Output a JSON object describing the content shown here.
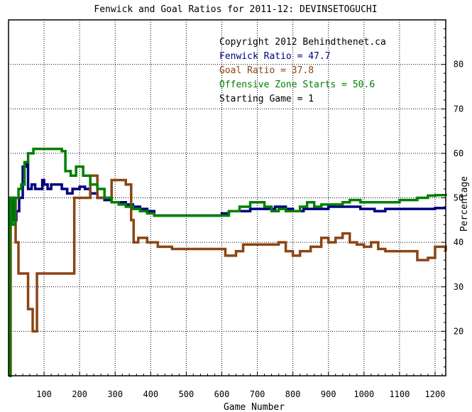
{
  "chart_data": {
    "type": "line",
    "title": "Fenwick and Goal Ratios for 2011-12: DEVINSETOGUCHI",
    "xlabel": "Game Number",
    "ylabel": "Percentage",
    "xlim": [
      0,
      1230
    ],
    "ylim": [
      10,
      90
    ],
    "x_ticks": [
      100,
      200,
      300,
      400,
      500,
      600,
      700,
      800,
      900,
      1000,
      1100,
      1200
    ],
    "y_ticks": [
      20,
      30,
      40,
      50,
      60,
      70,
      80
    ],
    "grid": true,
    "legend_position": "top-right",
    "annotations": [
      {
        "text": "Copyright 2012 Behindthenet.ca",
        "color": "#000000"
      },
      {
        "text": "Fenwick Ratio = 47.7",
        "color": "#00007f"
      },
      {
        "text": "Goal Ratio = 37.8",
        "color": "#8b4513"
      },
      {
        "text": "Offensive Zone Starts = 50.6",
        "color": "#007f00"
      },
      {
        "text": "Starting Game = 1",
        "color": "#000000"
      }
    ],
    "series": [
      {
        "key": "fenwick",
        "color": "#00007f",
        "points": [
          [
            1,
            10
          ],
          [
            5,
            50
          ],
          [
            12,
            45
          ],
          [
            22,
            47
          ],
          [
            30,
            50
          ],
          [
            40,
            57
          ],
          [
            48,
            58
          ],
          [
            55,
            52
          ],
          [
            65,
            53
          ],
          [
            75,
            52
          ],
          [
            85,
            52
          ],
          [
            95,
            54
          ],
          [
            100,
            53
          ],
          [
            110,
            52
          ],
          [
            120,
            53
          ],
          [
            135,
            53
          ],
          [
            150,
            52
          ],
          [
            165,
            51
          ],
          [
            180,
            52
          ],
          [
            200,
            52.5
          ],
          [
            215,
            52
          ],
          [
            230,
            51
          ],
          [
            250,
            50
          ],
          [
            270,
            49.5
          ],
          [
            290,
            49
          ],
          [
            310,
            49
          ],
          [
            330,
            48.5
          ],
          [
            350,
            48
          ],
          [
            370,
            47.5
          ],
          [
            390,
            47
          ],
          [
            410,
            46
          ],
          [
            500,
            46
          ],
          [
            580,
            46
          ],
          [
            600,
            46.5
          ],
          [
            620,
            47
          ],
          [
            650,
            47
          ],
          [
            680,
            47.5
          ],
          [
            720,
            47.5
          ],
          [
            750,
            48
          ],
          [
            780,
            47.5
          ],
          [
            800,
            47
          ],
          [
            830,
            47.5
          ],
          [
            860,
            47.5
          ],
          [
            900,
            48
          ],
          [
            950,
            48
          ],
          [
            990,
            47.5
          ],
          [
            1030,
            47
          ],
          [
            1060,
            47.5
          ],
          [
            1100,
            47.5
          ],
          [
            1150,
            47.5
          ],
          [
            1200,
            47.7
          ],
          [
            1230,
            47.7
          ]
        ]
      },
      {
        "key": "goal",
        "color": "#8b4513",
        "points": [
          [
            1,
            10
          ],
          [
            6,
            50
          ],
          [
            14,
            50
          ],
          [
            20,
            40
          ],
          [
            28,
            33
          ],
          [
            40,
            33
          ],
          [
            50,
            33
          ],
          [
            55,
            25
          ],
          [
            63,
            25
          ],
          [
            68,
            20
          ],
          [
            75,
            20
          ],
          [
            80,
            33
          ],
          [
            120,
            33
          ],
          [
            150,
            33
          ],
          [
            180,
            33
          ],
          [
            185,
            50
          ],
          [
            210,
            50
          ],
          [
            230,
            55
          ],
          [
            250,
            50
          ],
          [
            270,
            50
          ],
          [
            290,
            54
          ],
          [
            310,
            54
          ],
          [
            330,
            53
          ],
          [
            345,
            45
          ],
          [
            352,
            40
          ],
          [
            365,
            41
          ],
          [
            390,
            40
          ],
          [
            420,
            39
          ],
          [
            460,
            38.5
          ],
          [
            560,
            38.5
          ],
          [
            600,
            38.5
          ],
          [
            610,
            37
          ],
          [
            640,
            38
          ],
          [
            660,
            39.5
          ],
          [
            700,
            39.5
          ],
          [
            740,
            39.5
          ],
          [
            760,
            40
          ],
          [
            780,
            38
          ],
          [
            800,
            37
          ],
          [
            820,
            38
          ],
          [
            850,
            39
          ],
          [
            880,
            41
          ],
          [
            900,
            40
          ],
          [
            920,
            41
          ],
          [
            940,
            42
          ],
          [
            960,
            40
          ],
          [
            980,
            39.5
          ],
          [
            1000,
            39
          ],
          [
            1020,
            40
          ],
          [
            1040,
            38.5
          ],
          [
            1060,
            38
          ],
          [
            1100,
            38
          ],
          [
            1130,
            38
          ],
          [
            1150,
            36
          ],
          [
            1180,
            36.5
          ],
          [
            1200,
            39
          ],
          [
            1230,
            38
          ]
        ]
      },
      {
        "key": "ozs",
        "color": "#007f00",
        "points": [
          [
            1,
            10
          ],
          [
            4,
            50
          ],
          [
            10,
            44
          ],
          [
            18,
            50
          ],
          [
            28,
            52
          ],
          [
            36,
            53
          ],
          [
            45,
            58
          ],
          [
            55,
            60
          ],
          [
            70,
            61
          ],
          [
            100,
            61
          ],
          [
            120,
            61
          ],
          [
            140,
            61
          ],
          [
            150,
            60.5
          ],
          [
            160,
            56
          ],
          [
            175,
            55
          ],
          [
            190,
            57
          ],
          [
            210,
            55
          ],
          [
            230,
            53
          ],
          [
            250,
            52
          ],
          [
            270,
            50
          ],
          [
            290,
            49
          ],
          [
            310,
            48.5
          ],
          [
            330,
            48
          ],
          [
            350,
            47.5
          ],
          [
            370,
            47
          ],
          [
            390,
            46.5
          ],
          [
            410,
            46
          ],
          [
            500,
            46
          ],
          [
            580,
            46
          ],
          [
            600,
            46
          ],
          [
            620,
            47
          ],
          [
            650,
            48
          ],
          [
            680,
            49
          ],
          [
            700,
            49
          ],
          [
            720,
            48
          ],
          [
            740,
            47
          ],
          [
            760,
            47.5
          ],
          [
            780,
            47
          ],
          [
            800,
            47
          ],
          [
            820,
            48
          ],
          [
            840,
            49
          ],
          [
            860,
            48
          ],
          [
            880,
            48.5
          ],
          [
            900,
            48.5
          ],
          [
            940,
            49
          ],
          [
            960,
            49.5
          ],
          [
            990,
            49
          ],
          [
            1020,
            49
          ],
          [
            1060,
            49
          ],
          [
            1100,
            49.5
          ],
          [
            1150,
            50
          ],
          [
            1180,
            50.5
          ],
          [
            1200,
            50.6
          ],
          [
            1230,
            50.5
          ]
        ]
      }
    ]
  }
}
